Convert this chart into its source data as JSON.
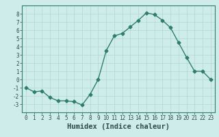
{
  "x": [
    0,
    1,
    2,
    3,
    4,
    5,
    6,
    7,
    8,
    9,
    10,
    11,
    12,
    13,
    14,
    15,
    16,
    17,
    18,
    19,
    20,
    21,
    22,
    23
  ],
  "y": [
    -1,
    -1.5,
    -1.4,
    -2.2,
    -2.6,
    -2.6,
    -2.7,
    -3.1,
    -1.8,
    0.0,
    3.5,
    5.3,
    5.6,
    6.4,
    7.2,
    8.1,
    7.9,
    7.2,
    6.3,
    4.5,
    2.7,
    1.0,
    1.0,
    0.0
  ],
  "line_color": "#2e7d6e",
  "marker": "D",
  "marker_size": 2.5,
  "bg_color": "#ceecea",
  "grid_color": "#b0d8d4",
  "xlabel": "Humidex (Indice chaleur)",
  "ylim": [
    -4,
    9
  ],
  "xlim": [
    -0.5,
    23.5
  ],
  "yticks": [
    -3,
    -2,
    -1,
    0,
    1,
    2,
    3,
    4,
    5,
    6,
    7,
    8
  ],
  "xticks": [
    0,
    1,
    2,
    3,
    4,
    5,
    6,
    7,
    8,
    9,
    10,
    11,
    12,
    13,
    14,
    15,
    16,
    17,
    18,
    19,
    20,
    21,
    22,
    23
  ],
  "font_color": "#2e4a4a",
  "tick_fontsize": 5.5,
  "xlabel_fontsize": 7.5
}
